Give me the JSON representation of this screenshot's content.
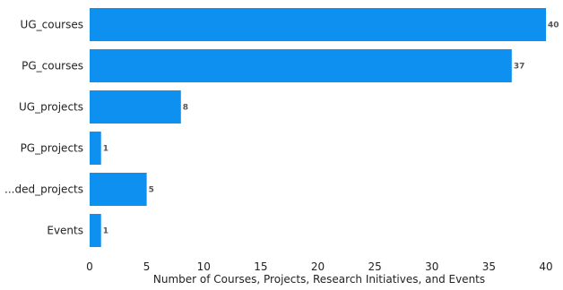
{
  "chart_data": {
    "type": "bar",
    "orientation": "horizontal",
    "categories": [
      "UG_courses",
      "PG_courses",
      "UG_projects",
      "PG_projects",
      "...ded_projects",
      "Events"
    ],
    "values": [
      40,
      37,
      8,
      1,
      5,
      1
    ],
    "value_labels": [
      "40",
      "37",
      "8",
      "1",
      "5",
      "1"
    ],
    "xlabel": "Number of Courses, Projects, Research Initiatives, and Events",
    "ylabel": "",
    "xlim": [
      0,
      40
    ],
    "xticks": [
      0,
      5,
      10,
      15,
      20,
      25,
      30,
      35,
      40
    ],
    "xtick_labels": [
      "0",
      "5",
      "10",
      "15",
      "20",
      "25",
      "30",
      "35",
      "40"
    ],
    "grid": false,
    "bar_color": "#0e90f0"
  }
}
